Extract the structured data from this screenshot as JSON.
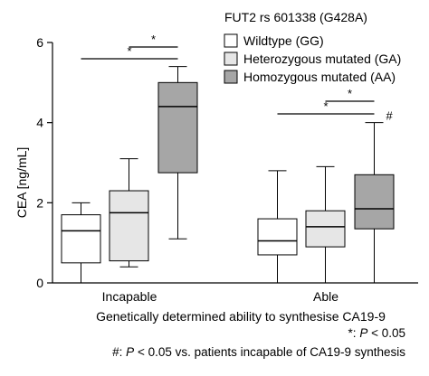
{
  "chart_data": {
    "type": "box",
    "legend": {
      "title": "FUT2 rs 601338 (G428A)",
      "entries": [
        {
          "label": "Wildtype (GG)",
          "color": "#ffffff"
        },
        {
          "label": "Heterozygous mutated (GA)",
          "color": "#e6e6e6"
        },
        {
          "label": "Homozygous mutated (AA)",
          "color": "#a6a6a6"
        }
      ],
      "placement": "top-right"
    },
    "xlabel": "Genetically determined ability to synthesise CA19-9",
    "ylabel": "CEA [ng/mL]",
    "ylim": [
      0,
      6
    ],
    "yticks": [
      0,
      2,
      4,
      6
    ],
    "categories": [
      "Incapable",
      "Able"
    ],
    "groups": [
      {
        "category": "Incapable",
        "boxes": [
          {
            "genotype": "GG",
            "min": 0.0,
            "q1": 0.5,
            "median": 1.3,
            "q3": 1.7,
            "max": 2.0
          },
          {
            "genotype": "GA",
            "min": 0.4,
            "q1": 0.55,
            "median": 1.75,
            "q3": 2.3,
            "max": 3.1
          },
          {
            "genotype": "AA",
            "min": 1.1,
            "q1": 2.75,
            "median": 4.4,
            "q3": 5.0,
            "max": 5.4
          }
        ],
        "comparisons": [
          {
            "from": "GG",
            "to": "AA",
            "label": "*"
          },
          {
            "from": "GA",
            "to": "AA",
            "label": "*"
          }
        ]
      },
      {
        "category": "Able",
        "boxes": [
          {
            "genotype": "GG",
            "min": 0.0,
            "q1": 0.7,
            "median": 1.05,
            "q3": 1.6,
            "max": 2.8
          },
          {
            "genotype": "GA",
            "min": 0.0,
            "q1": 0.9,
            "median": 1.4,
            "q3": 1.8,
            "max": 2.9
          },
          {
            "genotype": "AA",
            "min": 0.0,
            "q1": 1.35,
            "median": 1.85,
            "q3": 2.7,
            "max": 4.0,
            "annotation": "#"
          }
        ],
        "comparisons": [
          {
            "from": "GG",
            "to": "AA",
            "label": "*"
          },
          {
            "from": "GA",
            "to": "AA",
            "label": "*"
          }
        ]
      }
    ],
    "footnotes": {
      "star": {
        "prefix": "*: ",
        "p": "P",
        "text": " < 0.05"
      },
      "hash": {
        "prefix": "#: ",
        "p": "P",
        "text": " < 0.05 vs. patients incapable of CA19-9 synthesis"
      }
    }
  }
}
